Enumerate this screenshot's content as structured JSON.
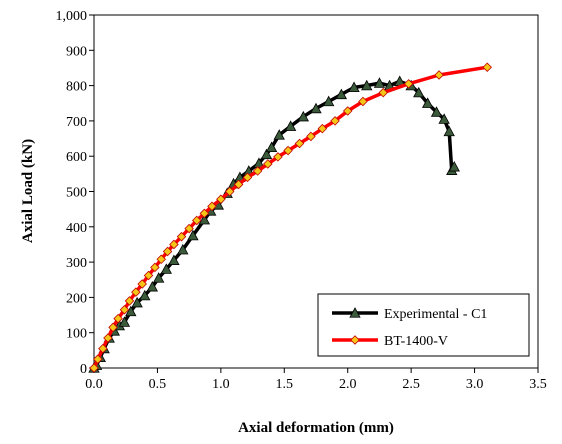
{
  "chart_data": {
    "type": "line",
    "title": "",
    "xlabel": "Axial deformation (mm)",
    "ylabel": "Axial Load (kN)",
    "xlim": [
      0,
      3.5
    ],
    "ylim": [
      0,
      1000
    ],
    "xticks": [
      "0.0",
      "0.5",
      "1.0",
      "1.5",
      "2.0",
      "2.5",
      "3.0",
      "3.5"
    ],
    "yticks": [
      "0",
      "100",
      "200",
      "300",
      "400",
      "500",
      "600",
      "700",
      "800",
      "900",
      "1,000"
    ],
    "grid": false,
    "legend_position": "bottom-right",
    "series": [
      {
        "name": "Experimental - C1",
        "color": "#000000",
        "marker": "triangle",
        "marker_color": "#3a5a3a",
        "points": [
          [
            0.0,
            0
          ],
          [
            0.02,
            8
          ],
          [
            0.05,
            30
          ],
          [
            0.08,
            55
          ],
          [
            0.12,
            85
          ],
          [
            0.16,
            105
          ],
          [
            0.2,
            120
          ],
          [
            0.24,
            130
          ],
          [
            0.29,
            160
          ],
          [
            0.34,
            185
          ],
          [
            0.4,
            205
          ],
          [
            0.46,
            230
          ],
          [
            0.51,
            255
          ],
          [
            0.57,
            280
          ],
          [
            0.63,
            305
          ],
          [
            0.7,
            335
          ],
          [
            0.78,
            375
          ],
          [
            0.87,
            420
          ],
          [
            0.92,
            445
          ],
          [
            0.98,
            462
          ],
          [
            1.05,
            495
          ],
          [
            1.1,
            522
          ],
          [
            1.15,
            540
          ],
          [
            1.22,
            558
          ],
          [
            1.3,
            580
          ],
          [
            1.36,
            605
          ],
          [
            1.4,
            625
          ],
          [
            1.46,
            660
          ],
          [
            1.55,
            685
          ],
          [
            1.65,
            712
          ],
          [
            1.75,
            735
          ],
          [
            1.85,
            755
          ],
          [
            1.95,
            775
          ],
          [
            2.05,
            795
          ],
          [
            2.15,
            800
          ],
          [
            2.25,
            807
          ],
          [
            2.33,
            800
          ],
          [
            2.41,
            812
          ],
          [
            2.5,
            800
          ],
          [
            2.56,
            780
          ],
          [
            2.63,
            750
          ],
          [
            2.7,
            725
          ],
          [
            2.76,
            705
          ],
          [
            2.8,
            670
          ],
          [
            2.82,
            560
          ],
          [
            2.84,
            570
          ]
        ]
      },
      {
        "name": "BT-1400-V",
        "color": "#ff0000",
        "marker": "diamond",
        "marker_color": "#f5c518",
        "points": [
          [
            0.0,
            0
          ],
          [
            0.03,
            25
          ],
          [
            0.07,
            55
          ],
          [
            0.11,
            85
          ],
          [
            0.15,
            115
          ],
          [
            0.19,
            140
          ],
          [
            0.24,
            165
          ],
          [
            0.28,
            190
          ],
          [
            0.33,
            215
          ],
          [
            0.38,
            238
          ],
          [
            0.43,
            262
          ],
          [
            0.48,
            285
          ],
          [
            0.53,
            308
          ],
          [
            0.58,
            330
          ],
          [
            0.63,
            350
          ],
          [
            0.69,
            372
          ],
          [
            0.75,
            395
          ],
          [
            0.81,
            418
          ],
          [
            0.87,
            438
          ],
          [
            0.93,
            458
          ],
          [
            1.0,
            478
          ],
          [
            1.07,
            500
          ],
          [
            1.14,
            520
          ],
          [
            1.21,
            540
          ],
          [
            1.29,
            558
          ],
          [
            1.37,
            578
          ],
          [
            1.45,
            598
          ],
          [
            1.53,
            616
          ],
          [
            1.62,
            636
          ],
          [
            1.71,
            656
          ],
          [
            1.8,
            678
          ],
          [
            1.9,
            700
          ],
          [
            2.0,
            728
          ],
          [
            2.12,
            755
          ],
          [
            2.28,
            780
          ],
          [
            2.48,
            805
          ],
          [
            2.72,
            830
          ],
          [
            3.1,
            852
          ]
        ]
      }
    ]
  }
}
